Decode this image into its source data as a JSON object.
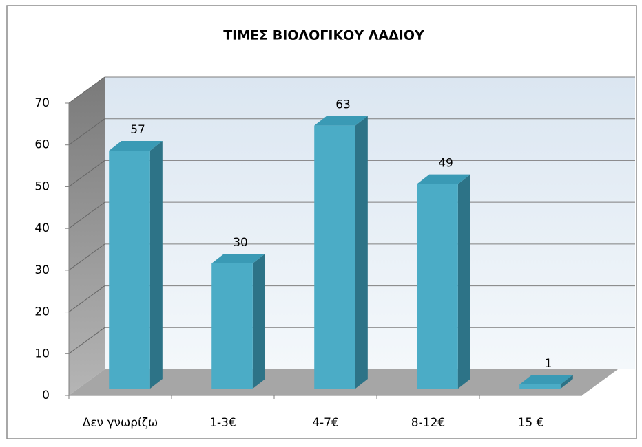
{
  "chart_data": {
    "type": "bar3d",
    "title": "ΤΙΜΕΣ ΒΙΟΛΟΓΙΚΟΥ ΛΑΔΙΟΥ",
    "categories": [
      "Δεν γνωρίζω",
      "1-3€",
      "4-7€",
      "8-12€",
      "15 €"
    ],
    "values": [
      57,
      30,
      63,
      49,
      1
    ],
    "color": "#4bacc6",
    "ylim": [
      0,
      70
    ],
    "yticks": [
      0,
      10,
      20,
      30,
      40,
      50,
      60,
      70
    ],
    "grid": true
  }
}
